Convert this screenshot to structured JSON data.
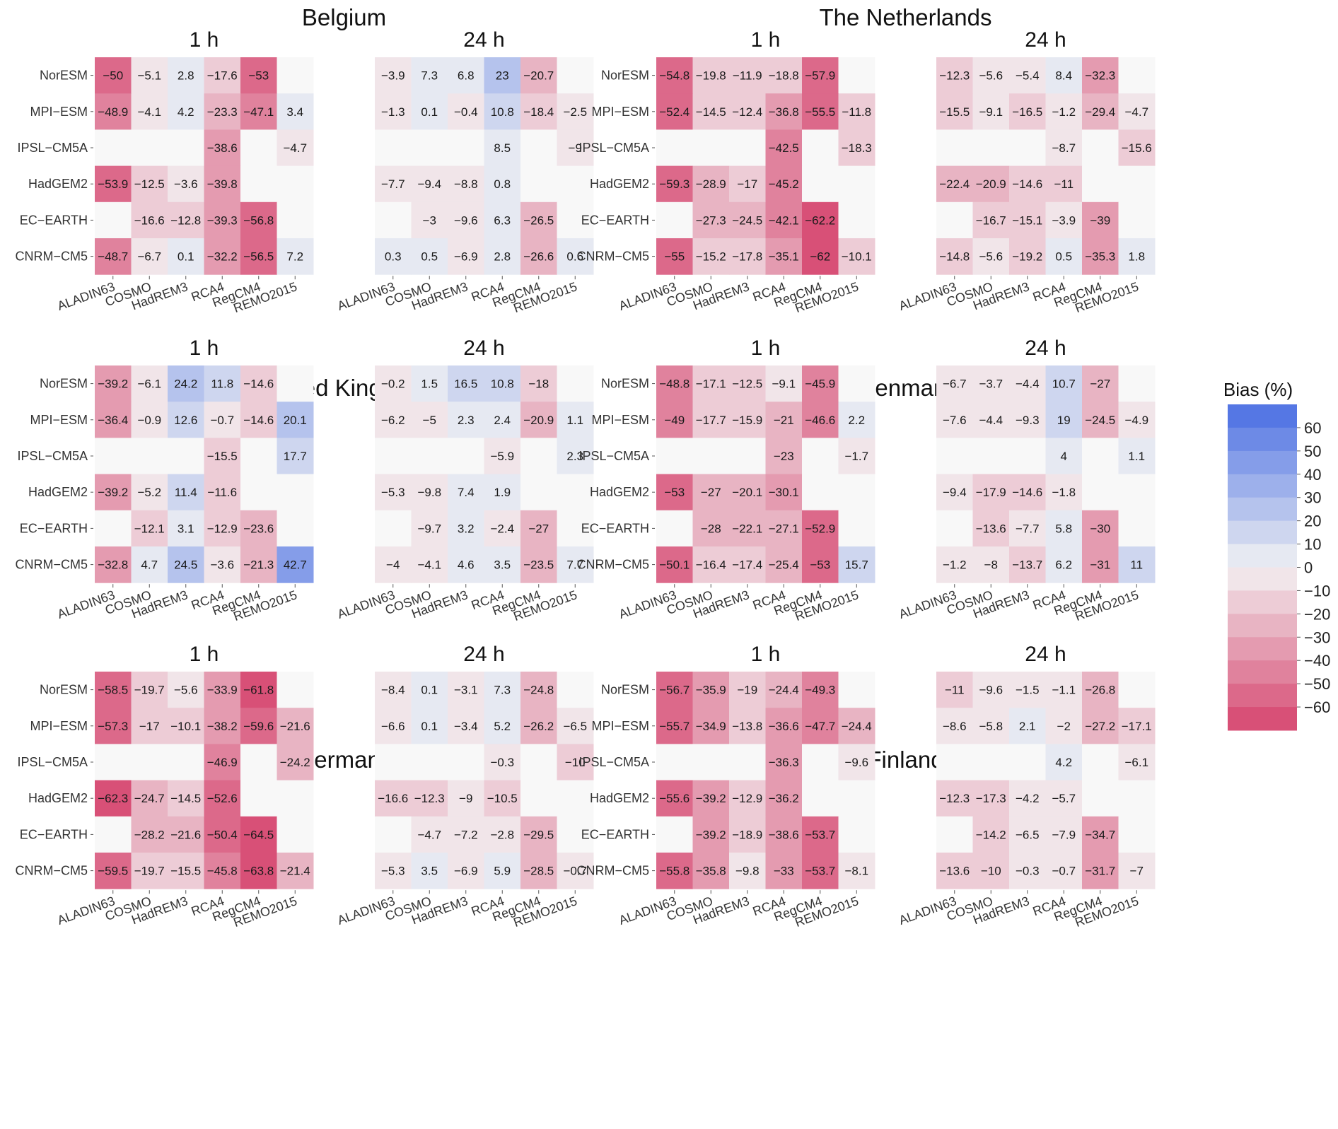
{
  "chart_data": {
    "type": "heatmap",
    "rows": [
      "NorESM",
      "MPI-ESM",
      "IPSL-CM5A",
      "HadGEM2",
      "EC-EARTH",
      "CNRM-CM5"
    ],
    "columns": [
      "ALADIN63",
      "COSMO",
      "HadREM3",
      "RCA4",
      "RegCM4",
      "REMO2015"
    ],
    "colorbar": {
      "title": "Bias (%)",
      "ticks": [
        60,
        50,
        40,
        30,
        20,
        10,
        0,
        -10,
        -20,
        -30,
        -40,
        -50,
        -60
      ],
      "range": [
        -70,
        70
      ],
      "negative_color": "#d6456e",
      "neutral_color": "#f3f3f3",
      "positive_color": "#4a6fe3",
      "missing_color": "#f8f8f8"
    },
    "countries": [
      {
        "name": "Belgium",
        "panels": [
          {
            "duration": "1 h",
            "values": [
              [
                -50,
                -5.1,
                2.8,
                -17.6,
                -53,
                null
              ],
              [
                -48.9,
                -4.1,
                4.2,
                -23.3,
                -47.1,
                3.4
              ],
              [
                null,
                null,
                null,
                -38.6,
                null,
                -4.7
              ],
              [
                -53.9,
                -12.5,
                -3.6,
                -39.8,
                null,
                null
              ],
              [
                null,
                -16.6,
                -12.8,
                -39.3,
                -56.8,
                null
              ],
              [
                -48.7,
                -6.7,
                0.1,
                -32.2,
                -56.5,
                7.2
              ]
            ]
          },
          {
            "duration": "24 h",
            "values": [
              [
                -3.9,
                7.3,
                6.8,
                23,
                -20.7,
                null
              ],
              [
                -1.3,
                0.1,
                -0.4,
                10.8,
                -18.4,
                -2.5
              ],
              [
                null,
                null,
                null,
                8.5,
                null,
                -9
              ],
              [
                -7.7,
                -9.4,
                -8.8,
                0.8,
                null,
                null
              ],
              [
                null,
                -3,
                -9.6,
                6.3,
                -26.5,
                null
              ],
              [
                0.3,
                0.5,
                -6.9,
                2.8,
                -26.6,
                0.6
              ]
            ]
          }
        ]
      },
      {
        "name": "The Netherlands",
        "panels": [
          {
            "duration": "1 h",
            "values": [
              [
                -54.8,
                -19.8,
                -11.9,
                -18.8,
                -57.9,
                null
              ],
              [
                -52.4,
                -14.5,
                -12.4,
                -36.8,
                -55.5,
                -11.8
              ],
              [
                null,
                null,
                null,
                -42.5,
                null,
                -18.3
              ],
              [
                -59.3,
                -28.9,
                -17,
                -45.2,
                null,
                null
              ],
              [
                null,
                -27.3,
                -24.5,
                -42.1,
                -62.2,
                null
              ],
              [
                -55,
                -15.2,
                -17.8,
                -35.1,
                -62,
                -10.1
              ]
            ]
          },
          {
            "duration": "24 h",
            "values": [
              [
                -12.3,
                -5.6,
                -5.4,
                8.4,
                -32.3,
                null
              ],
              [
                -15.5,
                -9.1,
                -16.5,
                -1.2,
                -29.4,
                -4.7
              ],
              [
                null,
                null,
                null,
                -8.7,
                null,
                -15.6
              ],
              [
                -22.4,
                -20.9,
                -14.6,
                -11,
                null,
                null
              ],
              [
                null,
                -16.7,
                -15.1,
                -3.9,
                -39,
                null
              ],
              [
                -14.8,
                -5.6,
                -19.2,
                0.5,
                -35.3,
                1.8
              ]
            ]
          }
        ]
      },
      {
        "name": "United Kingdom",
        "panels": [
          {
            "duration": "1 h",
            "values": [
              [
                -39.2,
                -6.1,
                24.2,
                11.8,
                -14.6,
                null
              ],
              [
                -36.4,
                -0.9,
                12.6,
                -0.7,
                -14.6,
                20.1
              ],
              [
                null,
                null,
                null,
                -15.5,
                null,
                17.7
              ],
              [
                -39.2,
                -5.2,
                11.4,
                -11.6,
                null,
                null
              ],
              [
                null,
                -12.1,
                3.1,
                -12.9,
                -23.6,
                null
              ],
              [
                -32.8,
                4.7,
                24.5,
                -3.6,
                -21.3,
                42.7
              ]
            ]
          },
          {
            "duration": "24 h",
            "values": [
              [
                -0.2,
                1.5,
                16.5,
                10.8,
                -18,
                null
              ],
              [
                -6.2,
                -5,
                2.3,
                2.4,
                -20.9,
                1.1
              ],
              [
                null,
                null,
                null,
                -5.9,
                null,
                2.3
              ],
              [
                -5.3,
                -9.8,
                7.4,
                1.9,
                null,
                null
              ],
              [
                null,
                -9.7,
                3.2,
                -2.4,
                -27,
                null
              ],
              [
                -4,
                -4.1,
                4.6,
                3.5,
                -23.5,
                7.7
              ]
            ]
          }
        ]
      },
      {
        "name": "Denmark",
        "panels": [
          {
            "duration": "1 h",
            "values": [
              [
                -48.8,
                -17.1,
                -12.5,
                -9.1,
                -45.9,
                null
              ],
              [
                -49,
                -17.7,
                -15.9,
                -21,
                -46.6,
                2.2
              ],
              [
                null,
                null,
                null,
                -23,
                null,
                -1.7
              ],
              [
                -53,
                -27,
                -20.1,
                -30.1,
                null,
                null
              ],
              [
                null,
                -28,
                -22.1,
                -27.1,
                -52.9,
                null
              ],
              [
                -50.1,
                -16.4,
                -17.4,
                -25.4,
                -53,
                15.7
              ]
            ]
          },
          {
            "duration": "24 h",
            "values": [
              [
                -6.7,
                -3.7,
                -4.4,
                10.7,
                -27,
                null
              ],
              [
                -7.6,
                -4.4,
                -9.3,
                19,
                -24.5,
                -4.9
              ],
              [
                null,
                null,
                null,
                4,
                null,
                1.1
              ],
              [
                -9.4,
                -17.9,
                -14.6,
                -1.8,
                null,
                null
              ],
              [
                null,
                -13.6,
                -7.7,
                5.8,
                -30,
                null
              ],
              [
                -1.2,
                -8,
                -13.7,
                6.2,
                -31,
                11
              ]
            ]
          }
        ]
      },
      {
        "name": "Germany",
        "panels": [
          {
            "duration": "1 h",
            "values": [
              [
                -58.5,
                -19.7,
                -5.6,
                -33.9,
                -61.8,
                null
              ],
              [
                -57.3,
                -17,
                -10.1,
                -38.2,
                -59.6,
                -21.6
              ],
              [
                null,
                null,
                null,
                -46.9,
                null,
                -24.2
              ],
              [
                -62.3,
                -24.7,
                -14.5,
                -52.6,
                null,
                null
              ],
              [
                null,
                -28.2,
                -21.6,
                -50.4,
                -64.5,
                null
              ],
              [
                -59.5,
                -19.7,
                -15.5,
                -45.8,
                -63.8,
                -21.4
              ]
            ]
          },
          {
            "duration": "24 h",
            "values": [
              [
                -8.4,
                0.1,
                -3.1,
                7.3,
                -24.8,
                null
              ],
              [
                -6.6,
                0.1,
                -3.4,
                5.2,
                -26.2,
                -6.5
              ],
              [
                null,
                null,
                null,
                -0.3,
                null,
                -10
              ],
              [
                -16.6,
                -12.3,
                -9,
                -10.5,
                null,
                null
              ],
              [
                null,
                -4.7,
                -7.2,
                -2.8,
                -29.5,
                null
              ],
              [
                -5.3,
                3.5,
                -6.9,
                5.9,
                -28.5,
                -0.7
              ]
            ]
          }
        ]
      },
      {
        "name": "Finland",
        "panels": [
          {
            "duration": "1 h",
            "values": [
              [
                -56.7,
                -35.9,
                -19,
                -24.4,
                -49.3,
                null
              ],
              [
                -55.7,
                -34.9,
                -13.8,
                -36.6,
                -47.7,
                -24.4
              ],
              [
                null,
                null,
                null,
                -36.3,
                null,
                -9.6
              ],
              [
                -55.6,
                -39.2,
                -12.9,
                -36.2,
                null,
                null
              ],
              [
                null,
                -39.2,
                -18.9,
                -38.6,
                -53.7,
                null
              ],
              [
                -55.8,
                -35.8,
                -9.8,
                -33,
                -53.7,
                -8.1
              ]
            ]
          },
          {
            "duration": "24 h",
            "values": [
              [
                -11,
                -9.6,
                -1.5,
                -1.1,
                -26.8,
                null
              ],
              [
                -8.6,
                -5.8,
                2.1,
                -2,
                -27.2,
                -17.1
              ],
              [
                null,
                null,
                null,
                4.2,
                null,
                -6.1
              ],
              [
                -12.3,
                -17.3,
                -4.2,
                -5.7,
                null,
                null
              ],
              [
                null,
                -14.2,
                -6.5,
                -7.9,
                -34.7,
                null
              ],
              [
                -13.6,
                -10,
                -0.3,
                -0.7,
                -31.7,
                -7
              ]
            ]
          }
        ]
      }
    ]
  }
}
